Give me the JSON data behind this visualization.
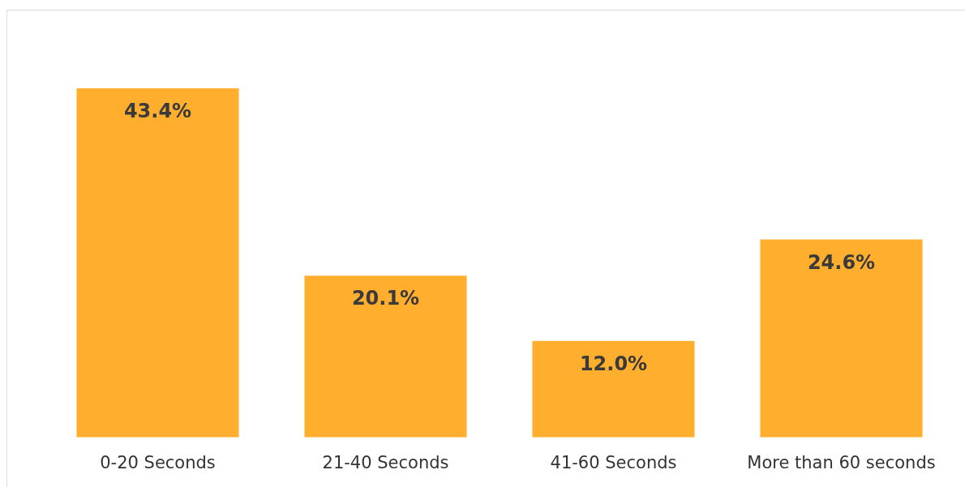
{
  "chart_data": {
    "type": "bar",
    "categories": [
      "0-20 Seconds",
      "21-40 Seconds",
      "41-60 Seconds",
      "More than 60 seconds"
    ],
    "values": [
      43.4,
      20.1,
      12.0,
      24.6
    ],
    "value_labels": [
      "43.4%",
      "20.1%",
      "12.0%",
      "24.6%"
    ],
    "color": "#ffae2e",
    "tick_labels": "x",
    "grid": false,
    "legend": false
  }
}
